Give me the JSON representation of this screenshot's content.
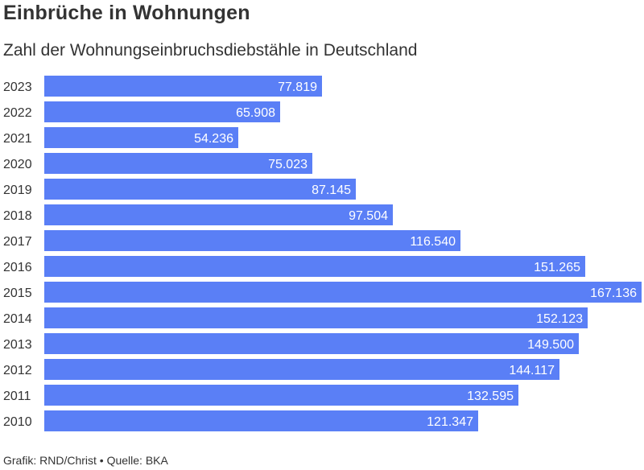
{
  "title": "Einbrüche in Wohnungen",
  "subtitle": "Zahl der Wohnungseinbruchsdiebstähle in Deutschland",
  "footer": "Grafik: RND/Christ • Quelle: BKA",
  "colors": {
    "bar": "#5a7ff6",
    "bar_label": "#ffffff",
    "text": "#333333"
  },
  "chart_data": {
    "type": "bar",
    "orientation": "horizontal",
    "categories": [
      "2023",
      "2022",
      "2021",
      "2020",
      "2019",
      "2018",
      "2017",
      "2016",
      "2015",
      "2014",
      "2013",
      "2012",
      "2011",
      "2010"
    ],
    "values": [
      77819,
      65908,
      54236,
      75023,
      87145,
      97504,
      116540,
      151265,
      167136,
      152123,
      149500,
      144117,
      132595,
      121347
    ],
    "value_labels": [
      "77.819",
      "65.908",
      "54.236",
      "75.023",
      "87.145",
      "97.504",
      "116.540",
      "151.265",
      "167.136",
      "152.123",
      "149.500",
      "144.117",
      "132.595",
      "121.347"
    ],
    "xlim": [
      0,
      167136
    ],
    "grid": false,
    "legend": "none"
  }
}
